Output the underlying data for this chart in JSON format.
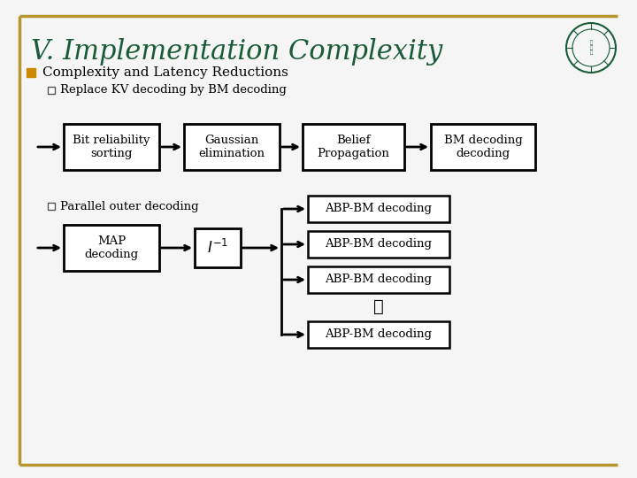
{
  "title": "V. Implementation Complexity",
  "title_color": "#1a5c38",
  "title_fontsize": 22,
  "bg_color": "#f5f5f5",
  "border_color": "#b8962e",
  "bullet1": "Complexity and Latency Reductions",
  "bullet1_color": "#cc6600",
  "sub_bullet1": "Replace KV decoding by BM decoding",
  "sub_bullet2": "Parallel outer decoding",
  "text_color": "#000000",
  "row1_boxes": [
    "Bit reliability\nsorting",
    "Gaussian\nelimination",
    "Belief\nPropagation",
    "BM decoding\ndecoding"
  ],
  "row2_left_box": "MAP\ndecoding",
  "row2_mid_box": "I⁻¹",
  "row2_right_boxes": [
    "ABP-BM decoding",
    "ABP-BM decoding",
    "ABP-BM decoding",
    "ABP-BM decoding"
  ],
  "font_family": "serif"
}
